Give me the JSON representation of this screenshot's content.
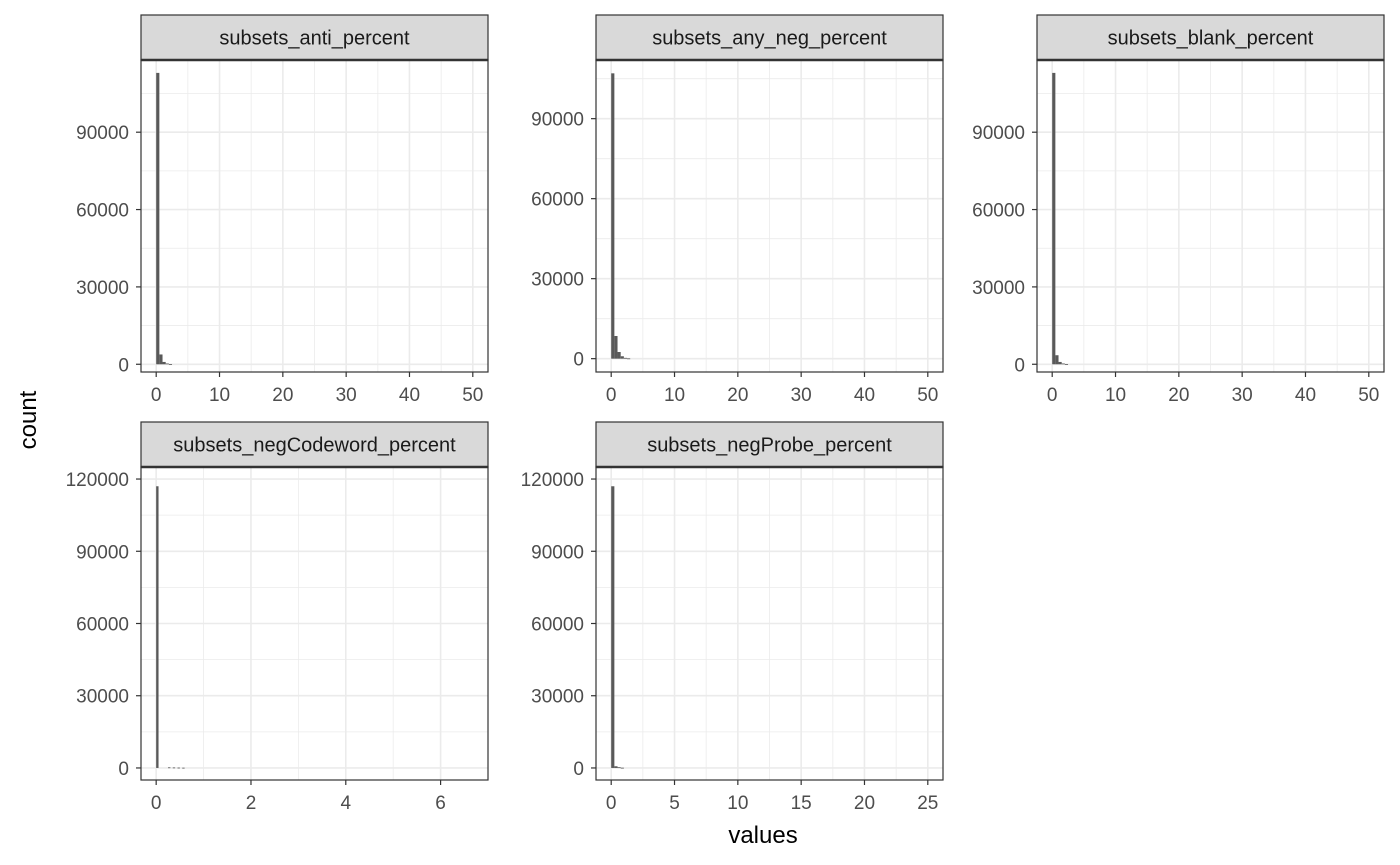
{
  "chart_data": {
    "type": "bar",
    "subtype": "faceted-histogram",
    "xlabel": "values",
    "ylabel": "count",
    "theme": {
      "panel_background": "#ffffff",
      "grid_color": "#ebebeb",
      "strip_background": "#d9d9d9",
      "bar_color": "#595959",
      "border_color": "#333333"
    },
    "grid": true,
    "facets": [
      {
        "title": "subsets_anti_percent",
        "xlim": [
          -2.4,
          52.4
        ],
        "ylim": [
          -3000,
          118000
        ],
        "x_ticks": [
          0,
          10,
          20,
          30,
          40,
          50
        ],
        "x_tick_labels": [
          "0",
          "10",
          "20",
          "30",
          "40",
          "50"
        ],
        "y_ticks": [
          0,
          30000,
          60000,
          90000
        ],
        "y_tick_labels": [
          "0",
          "30000",
          "60000",
          "90000"
        ],
        "bin_width": 0.5,
        "bins": [
          {
            "x": 0.0,
            "count": 113000
          },
          {
            "x": 0.5,
            "count": 3800
          },
          {
            "x": 1.0,
            "count": 900
          },
          {
            "x": 1.5,
            "count": 300
          },
          {
            "x": 2.0,
            "count": 100
          }
        ]
      },
      {
        "title": "subsets_any_neg_percent",
        "xlim": [
          -2.4,
          52.4
        ],
        "ylim": [
          -5000,
          112000
        ],
        "x_ticks": [
          0,
          10,
          20,
          30,
          40,
          50
        ],
        "x_tick_labels": [
          "0",
          "10",
          "20",
          "30",
          "40",
          "50"
        ],
        "y_ticks": [
          0,
          30000,
          60000,
          90000
        ],
        "y_tick_labels": [
          "0",
          "30000",
          "60000",
          "90000"
        ],
        "bin_width": 0.5,
        "bins": [
          {
            "x": 0.0,
            "count": 107000
          },
          {
            "x": 0.5,
            "count": 8500
          },
          {
            "x": 1.0,
            "count": 2500
          },
          {
            "x": 1.5,
            "count": 900
          },
          {
            "x": 2.0,
            "count": 300
          },
          {
            "x": 2.5,
            "count": 100
          }
        ]
      },
      {
        "title": "subsets_blank_percent",
        "xlim": [
          -2.4,
          52.4
        ],
        "ylim": [
          -3000,
          118000
        ],
        "x_ticks": [
          0,
          10,
          20,
          30,
          40,
          50
        ],
        "x_tick_labels": [
          "0",
          "10",
          "20",
          "30",
          "40",
          "50"
        ],
        "y_ticks": [
          0,
          30000,
          60000,
          90000
        ],
        "y_tick_labels": [
          "0",
          "30000",
          "60000",
          "90000"
        ],
        "bin_width": 0.5,
        "bins": [
          {
            "x": 0.0,
            "count": 113000
          },
          {
            "x": 0.5,
            "count": 3500
          },
          {
            "x": 1.0,
            "count": 900
          },
          {
            "x": 1.5,
            "count": 300
          },
          {
            "x": 2.0,
            "count": 100
          }
        ]
      },
      {
        "title": "subsets_negCodeword_percent",
        "xlim": [
          -0.32,
          7.0
        ],
        "ylim": [
          -5000,
          125000
        ],
        "x_ticks": [
          0,
          2,
          4,
          6
        ],
        "x_tick_labels": [
          "0",
          "2",
          "4",
          "6"
        ],
        "y_ticks": [
          0,
          30000,
          60000,
          90000,
          120000
        ],
        "y_tick_labels": [
          "0",
          "30000",
          "60000",
          "90000",
          "120000"
        ],
        "bin_width": 0.05,
        "bins": [
          {
            "x": 0.0,
            "count": 117000
          },
          {
            "x": 0.25,
            "count": 250
          },
          {
            "x": 0.35,
            "count": 200
          },
          {
            "x": 0.45,
            "count": 150
          },
          {
            "x": 0.55,
            "count": 100
          }
        ]
      },
      {
        "title": "subsets_negProbe_percent",
        "xlim": [
          -1.2,
          26.2
        ],
        "ylim": [
          -5000,
          125000
        ],
        "x_ticks": [
          0,
          5,
          10,
          15,
          20,
          25
        ],
        "x_tick_labels": [
          "0",
          "5",
          "10",
          "15",
          "20",
          "25"
        ],
        "y_ticks": [
          0,
          30000,
          60000,
          90000,
          120000
        ],
        "y_tick_labels": [
          "0",
          "30000",
          "60000",
          "90000",
          "120000"
        ],
        "bin_width": 0.25,
        "bins": [
          {
            "x": 0.0,
            "count": 117000
          },
          {
            "x": 0.25,
            "count": 700
          },
          {
            "x": 0.5,
            "count": 300
          },
          {
            "x": 0.75,
            "count": 100
          }
        ]
      }
    ]
  }
}
